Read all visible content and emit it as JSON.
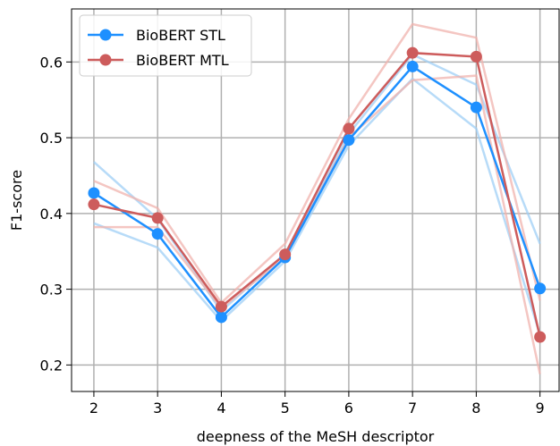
{
  "chart_data": {
    "type": "line",
    "title": "",
    "xlabel": "deepness of the MeSH descriptor",
    "ylabel": "F1-score",
    "x": [
      2,
      3,
      4,
      5,
      6,
      7,
      8,
      9
    ],
    "xlim": [
      1.65,
      9.3
    ],
    "ylim": [
      0.165,
      0.67
    ],
    "yticks": [
      0.2,
      0.3,
      0.4,
      0.5,
      0.6
    ],
    "ytick_labels": [
      "0.2",
      "0.3",
      "0.4",
      "0.5",
      "0.6"
    ],
    "xtick_labels": [
      "2",
      "3",
      "4",
      "5",
      "6",
      "7",
      "8",
      "9"
    ],
    "grid": true,
    "legend_position": "top-left",
    "series": [
      {
        "name": "BioBERT STL",
        "color": "#1e90ff",
        "band_color": "#9fcff5",
        "values": [
          0.427,
          0.373,
          0.263,
          0.342,
          0.497,
          0.594,
          0.54,
          0.301
        ],
        "upper": [
          0.468,
          0.393,
          0.271,
          0.347,
          0.505,
          0.61,
          0.57,
          0.36
        ],
        "lower": [
          0.387,
          0.355,
          0.258,
          0.337,
          0.49,
          0.578,
          0.512,
          0.24
        ]
      },
      {
        "name": "BioBERT MTL",
        "color": "#cd5c5c",
        "band_color": "#f0b3ad",
        "values": [
          0.412,
          0.394,
          0.277,
          0.346,
          0.512,
          0.612,
          0.607,
          0.237
        ],
        "upper": [
          0.443,
          0.407,
          0.282,
          0.36,
          0.525,
          0.65,
          0.632,
          0.285
        ],
        "lower": [
          0.382,
          0.382,
          0.275,
          0.342,
          0.5,
          0.576,
          0.582,
          0.188
        ]
      }
    ]
  }
}
